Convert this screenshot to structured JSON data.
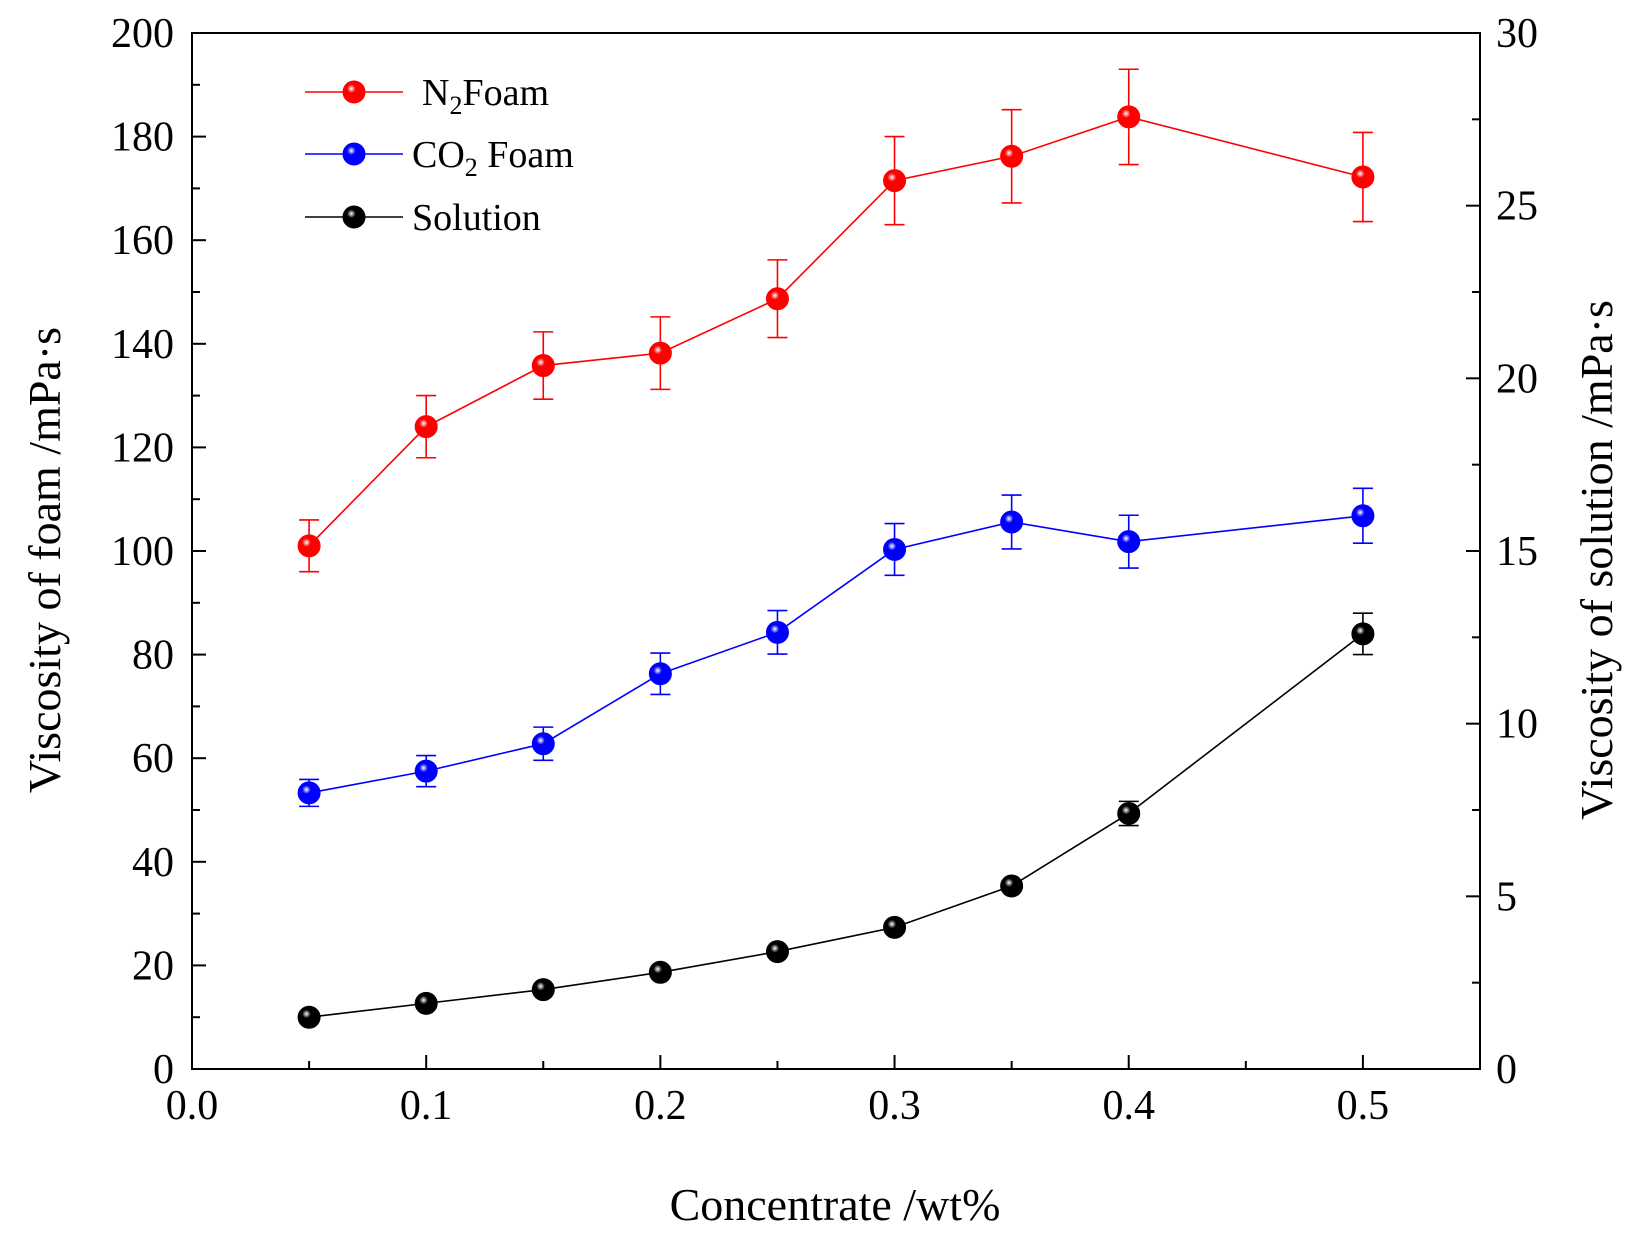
{
  "chart_data": {
    "type": "line",
    "xlabel": "Concentrate /wt%",
    "ylabel_left": "Viscosity of foam /mPa·s",
    "ylabel_right": "Viscosity of solution /mPa·s",
    "xlim": [
      0.0,
      0.55
    ],
    "ylim_left": [
      0,
      200
    ],
    "ylim_right": [
      0,
      30
    ],
    "xticks": [
      0.0,
      0.1,
      0.2,
      0.3,
      0.4,
      0.5
    ],
    "xtick_labels": [
      "0.0",
      "0.1",
      "0.2",
      "0.3",
      "0.4",
      "0.5"
    ],
    "yticks_left": [
      0,
      20,
      40,
      60,
      80,
      100,
      120,
      140,
      160,
      180,
      200
    ],
    "ytick_labels_left": [
      "0",
      "20",
      "40",
      "60",
      "80",
      "100",
      "120",
      "140",
      "160",
      "180",
      "200"
    ],
    "yticks_right": [
      0,
      5,
      10,
      15,
      20,
      25,
      30
    ],
    "ytick_labels_right": [
      "0",
      "5",
      "10",
      "15",
      "20",
      "25",
      "30"
    ],
    "grid": false,
    "legend_position": "top-left",
    "x": [
      0.05,
      0.1,
      0.15,
      0.2,
      0.25,
      0.3,
      0.35,
      0.4,
      0.5
    ],
    "series": [
      {
        "name": "N2 Foam",
        "legend_main": "N",
        "legend_sub": "2",
        "legend_rest": "Foam",
        "axis": "left",
        "color": "#ff0000",
        "values": [
          101,
          124,
          135.8,
          138.2,
          148.7,
          171.5,
          176.2,
          183.8,
          172.2
        ],
        "errors": [
          5,
          6,
          6.5,
          7,
          7.5,
          8.5,
          9,
          9.2,
          8.6
        ]
      },
      {
        "name": "CO2 Foam",
        "legend_main": "CO",
        "legend_sub": "2",
        "legend_rest": " Foam",
        "axis": "left",
        "color": "#0000ff",
        "values": [
          53.3,
          57.5,
          62.8,
          76.3,
          84.3,
          100.3,
          105.6,
          101.8,
          106.8
        ],
        "errors": [
          2.6,
          3,
          3.2,
          4,
          4.2,
          5,
          5.2,
          5.1,
          5.3
        ]
      },
      {
        "name": "Solution",
        "legend_main": "Solution",
        "legend_sub": "",
        "legend_rest": "",
        "axis": "right",
        "color": "#000000",
        "values": [
          1.5,
          1.9,
          2.3,
          2.8,
          3.4,
          4.1,
          5.3,
          7.4,
          12.6
        ],
        "errors": [
          0,
          0,
          0,
          0,
          0,
          0,
          0,
          0.35,
          0.6
        ]
      }
    ]
  }
}
